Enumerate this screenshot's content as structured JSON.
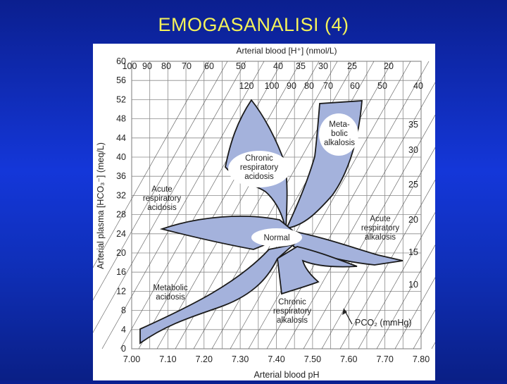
{
  "slide": {
    "title": "EMOGASANALISI (4)"
  },
  "diagram": {
    "top_axis_label": "Arterial blood [H⁺] (nmol/L)",
    "top_ticks_outer": [
      "100",
      "90",
      "80",
      "70",
      "60",
      "50",
      "40",
      "35",
      "30",
      "25",
      "20"
    ],
    "top_ticks_inner": [
      "120",
      "100",
      "90",
      "80",
      "70",
      "60",
      "50",
      "40"
    ],
    "x_axis_label": "Arterial blood pH",
    "x_ticks": [
      "7.00",
      "7.10",
      "7.20",
      "7.30",
      "7.40",
      "7.50",
      "7.60",
      "7.70",
      "7.80"
    ],
    "y_axis_label": "Arterial plasma [HCO₃⁻] (meq/L)",
    "y_ticks": [
      "0",
      "4",
      "8",
      "12",
      "16",
      "20",
      "24",
      "28",
      "32",
      "36",
      "40",
      "44",
      "48",
      "52",
      "56",
      "60"
    ],
    "pco2_ticks": [
      "10",
      "15",
      "20",
      "25",
      "30",
      "35"
    ],
    "pco2_label": "PCO₂ (mmHg)",
    "regions": {
      "metabolic_alkalosis": [
        "Meta-",
        "bolic",
        "alkalosis"
      ],
      "chronic_resp_acidosis": [
        "Chronic",
        "respiratory",
        "acidosis"
      ],
      "acute_resp_acidosis": [
        "Acute",
        "respiratory",
        "acidosis"
      ],
      "normal": [
        "Normal"
      ],
      "acute_resp_alkalosis": [
        "Acute",
        "respiratory",
        "alkalosis"
      ],
      "metabolic_acidosis": [
        "Metabolic",
        "acidosis"
      ],
      "chronic_resp_alkalosis": [
        "Chronic",
        "respiratory",
        "alkalosis"
      ]
    },
    "fill_color": "#a4b2dc",
    "outline_color": "#1b1b1b"
  }
}
